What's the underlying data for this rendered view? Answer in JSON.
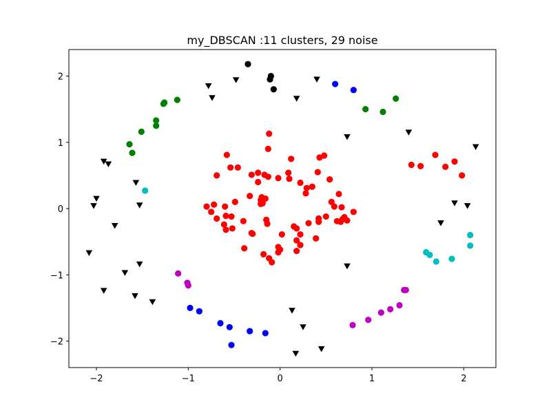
{
  "chart_data": {
    "type": "scatter",
    "title": "my_DBSCAN :11 clusters, 29 noise",
    "xlabel": "",
    "ylabel": "",
    "xlim": [
      -2.3,
      2.35
    ],
    "ylim": [
      -2.4,
      2.4
    ],
    "xticks": [
      -2,
      -1,
      0,
      1,
      2
    ],
    "yticks": [
      2,
      1,
      0,
      -1,
      -2
    ],
    "xtick_labels": [
      "−2",
      "−1",
      "0",
      "1",
      "2"
    ],
    "ytick_labels": [
      "2",
      "1",
      "0",
      "−1",
      "−2"
    ],
    "grid": false,
    "legend": false,
    "series": [
      {
        "color": "#ff0000",
        "marker": "circle",
        "points": [
          [
            -0.8,
            0.03
          ],
          [
            -0.75,
            -0.05
          ],
          [
            -0.72,
            0.06
          ],
          [
            -0.69,
            -0.15
          ],
          [
            -0.69,
            0.5
          ],
          [
            -0.6,
            0.03
          ],
          [
            -0.61,
            -0.24
          ],
          [
            -0.59,
            -0.11
          ],
          [
            -0.59,
            -0.32
          ],
          [
            -0.58,
            0.81
          ],
          [
            -0.54,
            0.62
          ],
          [
            -0.53,
            -0.12
          ],
          [
            -0.52,
            -0.3
          ],
          [
            -0.49,
            0.1
          ],
          [
            -0.46,
            0.62
          ],
          [
            -0.4,
            -0.19
          ],
          [
            -0.39,
            -0.6
          ],
          [
            -0.33,
            0.19
          ],
          [
            -0.31,
            -0.37
          ],
          [
            -0.3,
            -0.38
          ],
          [
            -0.31,
            0.51
          ],
          [
            -0.24,
            0.54
          ],
          [
            -0.24,
            0.4
          ],
          [
            -0.21,
            0.07
          ],
          [
            -0.21,
            0.13
          ],
          [
            -0.2,
            0.17
          ],
          [
            -0.2,
            0.1
          ],
          [
            -0.19,
            0.08
          ],
          [
            -0.18,
            -0.69
          ],
          [
            -0.17,
            0.51
          ],
          [
            -0.16,
            0.15
          ],
          [
            -0.15,
            -0.17
          ],
          [
            -0.14,
            -0.23
          ],
          [
            -0.13,
            0.9
          ],
          [
            -0.13,
            0.48
          ],
          [
            -0.12,
            1.13
          ],
          [
            -0.12,
            -0.75
          ],
          [
            -0.09,
            -0.81
          ],
          [
            -0.02,
            -0.66
          ],
          [
            -0.02,
            -0.58
          ],
          [
            -0.02,
            0.46
          ],
          [
            0,
            -0.62
          ],
          [
            0.02,
            -0.39
          ],
          [
            0.09,
            0.54
          ],
          [
            0.1,
            0.45
          ],
          [
            0.12,
            0.75
          ],
          [
            0.15,
            -0.27
          ],
          [
            0.18,
            -0.3
          ],
          [
            0.18,
            -0.48
          ],
          [
            0.18,
            -0.64
          ],
          [
            0.22,
            0.39
          ],
          [
            0.22,
            -0.55
          ],
          [
            0.22,
            -0.39
          ],
          [
            0.28,
            0.23
          ],
          [
            0.29,
            0.31
          ],
          [
            0.31,
            -0.22
          ],
          [
            0.35,
            0.33
          ],
          [
            0.39,
            -0.45
          ],
          [
            0.41,
            0.55
          ],
          [
            0.42,
            -0.2
          ],
          [
            0.42,
            -0.15
          ],
          [
            0.43,
            0.77
          ],
          [
            0.48,
            0.8
          ],
          [
            0.5,
            -0.12
          ],
          [
            0.56,
            0.1
          ],
          [
            0.54,
            0.44
          ],
          [
            0.59,
            0.03
          ],
          [
            0.62,
            -0.19
          ],
          [
            0.64,
            0.22
          ],
          [
            0.66,
            -0.2
          ],
          [
            0.68,
            -0.16
          ],
          [
            0.7,
            -0.13
          ],
          [
            0.73,
            -0.18
          ],
          [
            0.8,
            -0.05
          ],
          [
            0.67,
            0.02
          ],
          [
            1.43,
            0.66
          ],
          [
            1.53,
            0.64
          ],
          [
            1.69,
            0.81
          ],
          [
            1.8,
            0.63
          ],
          [
            1.9,
            0.71
          ],
          [
            1.98,
            0.5
          ]
        ]
      },
      {
        "color": "#000000",
        "marker": "circle",
        "points": [
          [
            -0.35,
            2.18
          ],
          [
            -0.11,
            1.95
          ],
          [
            -0.1,
            2.0
          ],
          [
            -0.07,
            1.8
          ]
        ]
      },
      {
        "color": "#0000ff",
        "marker": "circle",
        "points": [
          [
            0.6,
            1.88
          ],
          [
            0.8,
            1.79
          ],
          [
            -0.98,
            -1.5
          ],
          [
            -0.88,
            -1.55
          ],
          [
            -0.65,
            -1.73
          ],
          [
            -0.55,
            -1.79
          ],
          [
            -0.53,
            -2.06
          ],
          [
            -0.33,
            -1.85
          ],
          [
            -0.16,
            -1.88
          ]
        ]
      },
      {
        "color": "#008000",
        "marker": "circle",
        "points": [
          [
            -1.12,
            1.64
          ],
          [
            -1.26,
            1.6
          ],
          [
            -1.27,
            1.58
          ],
          [
            -1.35,
            1.33
          ],
          [
            -1.35,
            1.25
          ],
          [
            -1.51,
            1.16
          ],
          [
            -1.64,
            0.97
          ],
          [
            -1.61,
            0.84
          ],
          [
            0.93,
            1.5
          ],
          [
            1.12,
            1.46
          ],
          [
            1.26,
            1.66
          ]
        ]
      },
      {
        "color": "#00bfbf",
        "marker": "circle",
        "points": [
          [
            -1.47,
            0.27
          ],
          [
            2.07,
            -0.4
          ],
          [
            2.07,
            -0.56
          ],
          [
            1.59,
            -0.66
          ],
          [
            1.63,
            -0.7
          ],
          [
            1.7,
            -0.8
          ],
          [
            1.87,
            -0.76
          ]
        ]
      },
      {
        "color": "#bf00bf",
        "marker": "circle",
        "points": [
          [
            -1.11,
            -0.98
          ],
          [
            -1.01,
            -1.12
          ],
          [
            -1.0,
            -1.16
          ],
          [
            1.37,
            -1.23
          ],
          [
            1.35,
            -1.23
          ],
          [
            1.3,
            -1.46
          ],
          [
            1.2,
            -1.52
          ],
          [
            1.1,
            -1.57
          ],
          [
            0.96,
            -1.68
          ],
          [
            0.79,
            -1.76
          ]
        ]
      },
      {
        "color": "#000000",
        "marker": "triangle-down",
        "points": [
          [
            -0.78,
            1.85
          ],
          [
            -0.74,
            1.67
          ],
          [
            -0.48,
            1.94
          ],
          [
            0.18,
            1.66
          ],
          [
            0.4,
            1.95
          ],
          [
            0.73,
            1.08
          ],
          [
            1.4,
            1.15
          ],
          [
            2.13,
            0.93
          ],
          [
            -1.92,
            0.71
          ],
          [
            -1.87,
            0.67
          ],
          [
            -1.57,
            0.39
          ],
          [
            -2.0,
            0.15
          ],
          [
            -2.03,
            0.04
          ],
          [
            -1.53,
            0.05
          ],
          [
            -1.8,
            -0.26
          ],
          [
            2.04,
            0.04
          ],
          [
            1.9,
            0.08
          ],
          [
            1.75,
            -0.22
          ],
          [
            -2.08,
            -0.67
          ],
          [
            -1.53,
            -0.84
          ],
          [
            -1.69,
            -0.97
          ],
          [
            -1.92,
            -1.24
          ],
          [
            -1.58,
            -1.32
          ],
          [
            -1.39,
            -1.41
          ],
          [
            0.73,
            -0.87
          ],
          [
            0.13,
            -1.54
          ],
          [
            0.25,
            -1.79
          ],
          [
            0.17,
            -2.19
          ],
          [
            0.45,
            -2.12
          ]
        ]
      }
    ]
  }
}
